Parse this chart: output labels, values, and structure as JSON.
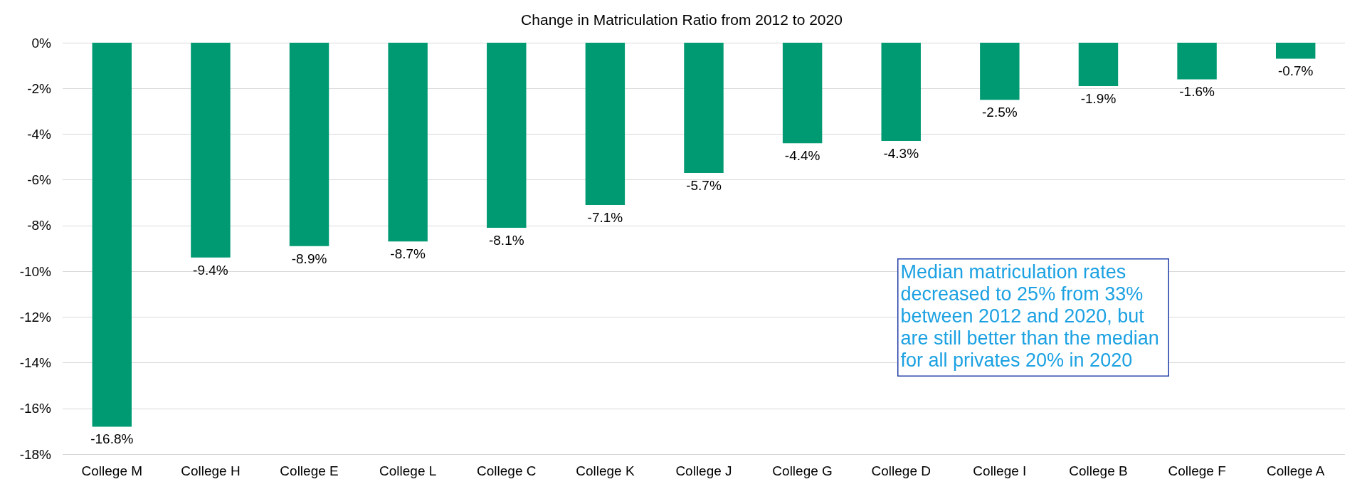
{
  "chart_data": {
    "type": "bar",
    "title": "Change in Matriculation Ratio from 2012 to 2020",
    "categories": [
      "College M",
      "College H",
      "College E",
      "College L",
      "College C",
      "College K",
      "College J",
      "College G",
      "College D",
      "College I",
      "College B",
      "College F",
      "College A"
    ],
    "values": [
      -16.8,
      -9.4,
      -8.9,
      -8.7,
      -8.1,
      -7.1,
      -5.7,
      -4.4,
      -4.3,
      -2.5,
      -1.9,
      -1.6,
      -0.7
    ],
    "value_labels": [
      "-16.8%",
      "-9.4%",
      "-8.9%",
      "-8.7%",
      "-8.1%",
      "-7.1%",
      "-5.7%",
      "-4.4%",
      "-4.3%",
      "-2.5%",
      "-1.9%",
      "-1.6%",
      "-0.7%"
    ],
    "color": "#009a72",
    "ylim": [
      -18,
      0
    ],
    "yticks": [
      {
        "value": 0,
        "label": "0%"
      },
      {
        "value": -2,
        "label": "-2%"
      },
      {
        "value": -4,
        "label": "-4%"
      },
      {
        "value": -6,
        "label": "-6%"
      },
      {
        "value": -8,
        "label": "-8%"
      },
      {
        "value": -10,
        "label": "-10%"
      },
      {
        "value": -12,
        "label": "-12%"
      },
      {
        "value": -14,
        "label": "-14%"
      },
      {
        "value": -16,
        "label": "-16%"
      },
      {
        "value": -18,
        "label": "-18%"
      }
    ],
    "grid": "y",
    "annotations": [
      "Median matriculation rates decreased to 25% from 33% between 2012 and 2020, but are still better than the median for all privates 20% in 2020"
    ]
  }
}
